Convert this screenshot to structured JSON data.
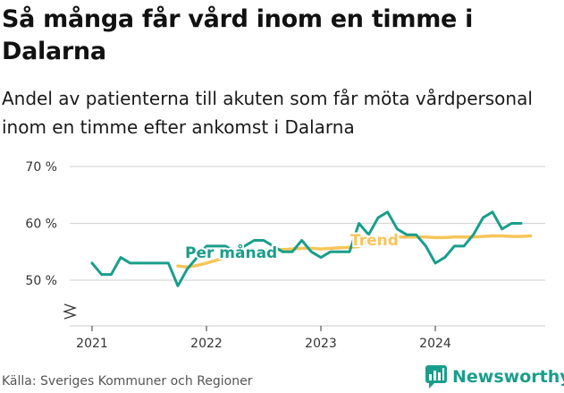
{
  "title": "Så många får vård inom en timme i Dalarna",
  "subtitle": "Andel av patienterna till akuten som får möta vårdpersonal inom en timme efter ankomst i Dalarna",
  "source": "Källa: Sveriges Kommuner och Regioner",
  "brand": "Newsworthy",
  "colors": {
    "series_main": "#1a9e8c",
    "series_trend": "#f7c55a",
    "grid": "#d6d6d6",
    "axis_text": "#333333"
  },
  "chart_data": {
    "type": "line",
    "ylim": [
      40,
      70
    ],
    "yticks": [
      50,
      60,
      70
    ],
    "ytick_labels": [
      "50 %",
      "60 %",
      "70 %"
    ],
    "y_axis_break": true,
    "xticks": [
      2021,
      2022,
      2023,
      2024
    ],
    "xtick_labels": [
      "2021",
      "2022",
      "2023",
      "2024"
    ],
    "grid": true,
    "series": [
      {
        "name": "Per månad",
        "color": "#1a9e8c",
        "x": [
          2021.0,
          2021.083,
          2021.167,
          2021.25,
          2021.333,
          2021.417,
          2021.5,
          2021.583,
          2021.667,
          2021.75,
          2021.833,
          2021.917,
          2022.0,
          2022.083,
          2022.167,
          2022.25,
          2022.333,
          2022.417,
          2022.5,
          2022.583,
          2022.667,
          2022.75,
          2022.833,
          2022.917,
          2023.0,
          2023.083,
          2023.167,
          2023.25,
          2023.333,
          2023.417,
          2023.5,
          2023.583,
          2023.667,
          2023.75,
          2023.833,
          2023.917,
          2024.0,
          2024.083,
          2024.167,
          2024.25,
          2024.333,
          2024.417,
          2024.5,
          2024.583,
          2024.667,
          2024.75
        ],
        "values": [
          53,
          51,
          51,
          54,
          53,
          53,
          53,
          53,
          53,
          49,
          52,
          54,
          56,
          56,
          56,
          55,
          56,
          57,
          57,
          56,
          55,
          55,
          57,
          55,
          54,
          55,
          55,
          55,
          60,
          58,
          61,
          62,
          59,
          58,
          58,
          56,
          53,
          54,
          56,
          56,
          58,
          61,
          62,
          59,
          60,
          60
        ]
      },
      {
        "name": "Trend",
        "color": "#f7c55a",
        "x": [
          2021.75,
          2021.833,
          2021.917,
          2022.0,
          2022.083,
          2022.167,
          2022.25,
          2022.333,
          2022.417,
          2022.5,
          2022.583,
          2022.667,
          2022.75,
          2022.833,
          2022.917,
          2023.0,
          2023.083,
          2023.167,
          2023.25,
          2023.333,
          2023.417,
          2023.5,
          2023.583,
          2023.667,
          2023.75,
          2023.833,
          2023.917,
          2024.0,
          2024.083,
          2024.167,
          2024.25,
          2024.333,
          2024.417,
          2024.5,
          2024.583,
          2024.667,
          2024.75,
          2024.833
        ],
        "values": [
          52.5,
          52.3,
          52.6,
          53.0,
          53.5,
          54.0,
          54.4,
          54.7,
          55.0,
          55.2,
          55.3,
          55.4,
          55.5,
          55.6,
          55.6,
          55.5,
          55.6,
          55.7,
          55.8,
          55.9,
          57.2,
          57.4,
          57.5,
          57.6,
          57.6,
          57.6,
          57.6,
          57.5,
          57.5,
          57.6,
          57.6,
          57.6,
          57.7,
          57.8,
          57.8,
          57.7,
          57.7,
          57.8
        ]
      }
    ],
    "annotations": [
      {
        "text": "Per månad",
        "series": 0
      },
      {
        "text": "Trend",
        "series": 1
      }
    ]
  }
}
